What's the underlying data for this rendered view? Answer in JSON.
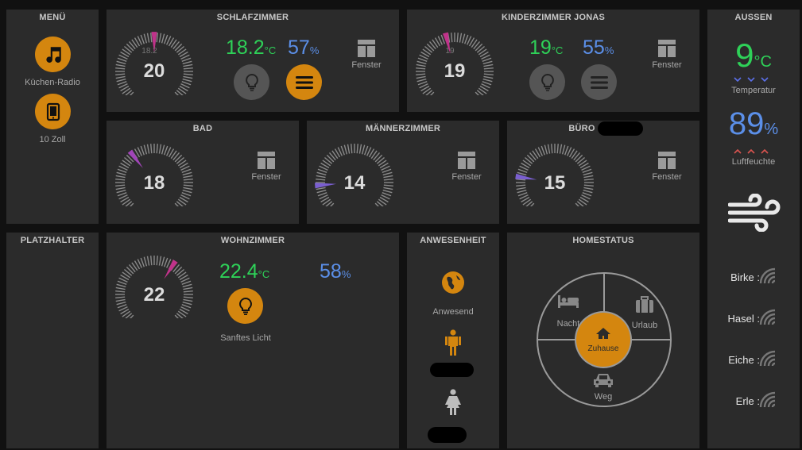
{
  "menu": {
    "title": "MENÜ",
    "radio_label": "Küchen-Radio",
    "tablet_label": "10 Zoll"
  },
  "schlafzimmer": {
    "title": "SCHLAFZIMMER",
    "setpoint": "20",
    "actual": "18.2",
    "temp": "18.2",
    "temp_unit": "°C",
    "humidity": "57",
    "hum_unit": "%",
    "window_label": "Fenster",
    "gauge_level": 0.5
  },
  "kinderzimmer": {
    "title": "KINDERZIMMER JONAS",
    "setpoint": "19",
    "actual": "19",
    "temp": "19",
    "temp_unit": "°C",
    "humidity": "55",
    "hum_unit": "%",
    "window_label": "Fenster",
    "gauge_level": 0.45
  },
  "bad": {
    "title": "BAD",
    "setpoint": "18",
    "window_label": "Fenster",
    "gauge_level": 0.36
  },
  "maennerzimmer": {
    "title": "MÄNNERZIMMER",
    "setpoint": "14",
    "window_label": "Fenster",
    "gauge_level": 0.15
  },
  "buero": {
    "title": "BÜRO",
    "setpoint": "15",
    "window_label": "Fenster",
    "gauge_level": 0.2
  },
  "platzhalter": {
    "title": "PLATZHALTER"
  },
  "wohnzimmer": {
    "title": "WOHNZIMMER",
    "setpoint": "22",
    "temp": "22.4",
    "temp_unit": "°C",
    "humidity": "58",
    "hum_unit": "%",
    "light_label": "Sanftes Licht",
    "gauge_level": 0.62
  },
  "anwesenheit": {
    "title": "ANWESENHEIT",
    "status_label": "Anwesend"
  },
  "homestatus": {
    "title": "HOMESTATUS",
    "nacht": "Nacht",
    "urlaub": "Urlaub",
    "zuhause": "Zuhause",
    "weg": "Weg"
  },
  "aussen": {
    "title": "AUSSEN",
    "temp": "9",
    "temp_unit": "°C",
    "temp_label": "Temperatur",
    "humidity": "89",
    "hum_unit": "%",
    "hum_label": "Luftfeuchte",
    "pollen": [
      {
        "label": "Birke :"
      },
      {
        "label": "Hasel :"
      },
      {
        "label": "Eiche :"
      },
      {
        "label": "Erle :"
      }
    ]
  },
  "colors": {
    "orange": "#d4860f",
    "green": "#2ed158",
    "blue": "#5b8fe8",
    "magenta": "#c0338a",
    "purple": "#7a5fd0",
    "panel": "#2b2b2b"
  }
}
